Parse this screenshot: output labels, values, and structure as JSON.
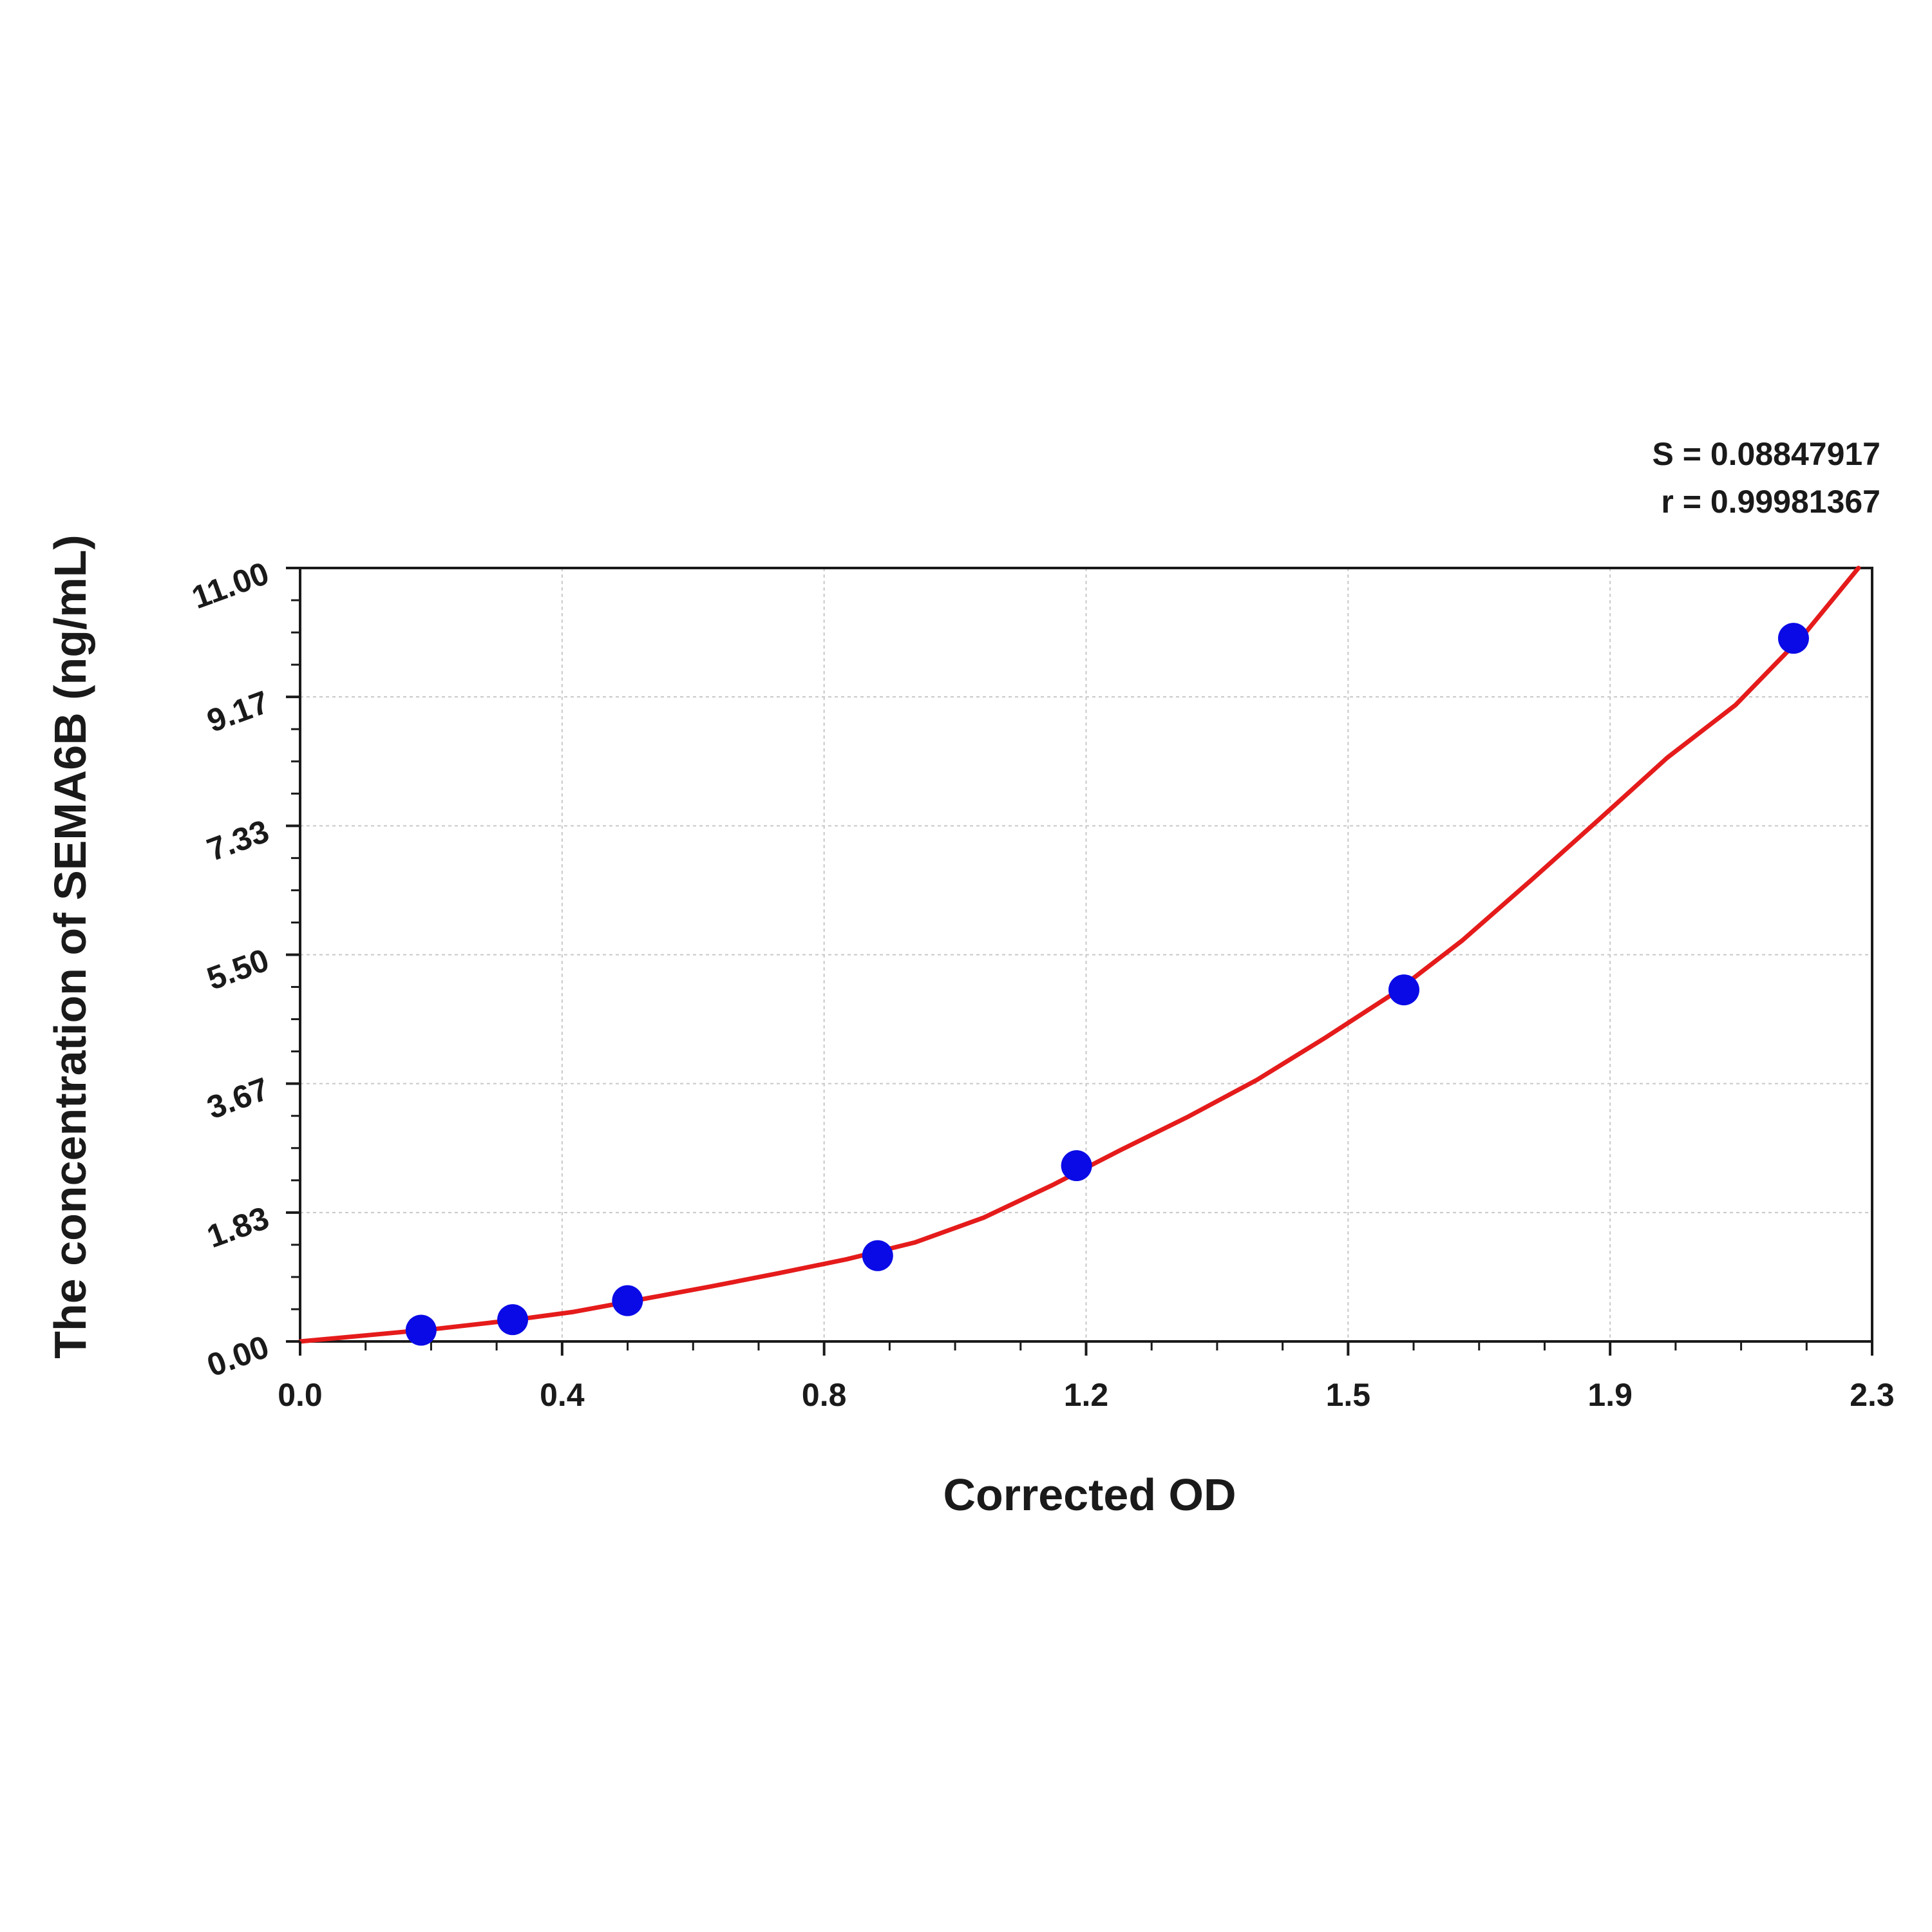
{
  "chart_data": {
    "type": "scatter",
    "xlabel": "Corrected OD",
    "ylabel": "The concentration of SEMA6B (ng/mL)",
    "xlim": [
      0.0,
      2.3
    ],
    "ylim": [
      0.0,
      11.0
    ],
    "x_ticks": [
      "0.0",
      "0.4",
      "0.8",
      "1.2",
      "1.5",
      "1.9",
      "2.3"
    ],
    "y_ticks": [
      "0.00",
      "1.83",
      "3.67",
      "5.50",
      "7.33",
      "9.17",
      "11.00"
    ],
    "grid": true,
    "annotations": {
      "s_value": "S = 0.08847917",
      "r_value": "r = 0.99981367"
    },
    "series": [
      {
        "type": "scatter",
        "color": "#0a0ae6",
        "points": [
          {
            "x": 0.177,
            "y": 0.16
          },
          {
            "x": 0.311,
            "y": 0.31
          },
          {
            "x": 0.479,
            "y": 0.58
          },
          {
            "x": 0.845,
            "y": 1.22
          },
          {
            "x": 1.136,
            "y": 2.5
          },
          {
            "x": 1.615,
            "y": 5.0
          },
          {
            "x": 2.185,
            "y": 10.0
          }
        ]
      },
      {
        "type": "line",
        "color": "#e51b1b",
        "curve": [
          {
            "x": 0.0,
            "y": 0.0
          },
          {
            "x": 0.1,
            "y": 0.09
          },
          {
            "x": 0.2,
            "y": 0.18
          },
          {
            "x": 0.3,
            "y": 0.29
          },
          {
            "x": 0.4,
            "y": 0.42
          },
          {
            "x": 0.5,
            "y": 0.6
          },
          {
            "x": 0.6,
            "y": 0.78
          },
          {
            "x": 0.7,
            "y": 0.97
          },
          {
            "x": 0.8,
            "y": 1.17
          },
          {
            "x": 0.9,
            "y": 1.41
          },
          {
            "x": 1.0,
            "y": 1.76
          },
          {
            "x": 1.1,
            "y": 2.22
          },
          {
            "x": 1.2,
            "y": 2.72
          },
          {
            "x": 1.3,
            "y": 3.2
          },
          {
            "x": 1.4,
            "y": 3.72
          },
          {
            "x": 1.5,
            "y": 4.32
          },
          {
            "x": 1.6,
            "y": 4.95
          },
          {
            "x": 1.7,
            "y": 5.7
          },
          {
            "x": 1.8,
            "y": 6.55
          },
          {
            "x": 1.9,
            "y": 7.42
          },
          {
            "x": 2.0,
            "y": 8.3
          },
          {
            "x": 2.1,
            "y": 9.05
          },
          {
            "x": 2.2,
            "y": 10.05
          },
          {
            "x": 2.28,
            "y": 11.0
          }
        ]
      }
    ]
  }
}
